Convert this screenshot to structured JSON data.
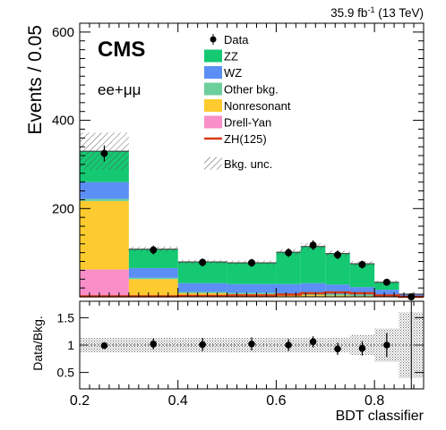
{
  "chart_data": {
    "type": "bar",
    "lumi_label": "35.9 fb",
    "lumi_exp": "-1",
    "lumi_energy": " (13 TeV)",
    "cms_label": "CMS",
    "channel_label": "ee+μμ",
    "ylabel": "Events / 0.05",
    "ratio_ylabel": "Data/Bkg.",
    "xlabel": "BDT classifier",
    "xlim": [
      0.2,
      0.9
    ],
    "ylim": [
      0,
      620
    ],
    "ratio_ylim": [
      0.2,
      1.8
    ],
    "x_ticks": [
      "0.2",
      "0.4",
      "0.6",
      "0.8"
    ],
    "x_tick_values": [
      0.2,
      0.4,
      0.6,
      0.8
    ],
    "y_ticks": [
      "200",
      "400",
      "600"
    ],
    "y_tick_values": [
      200,
      400,
      600
    ],
    "ratio_ticks": [
      "0.5",
      "1",
      "1.5"
    ],
    "ratio_tick_values": [
      0.5,
      1.0,
      1.5
    ],
    "bin_edges": [
      0.2,
      0.3,
      0.4,
      0.5,
      0.6,
      0.65,
      0.7,
      0.75,
      0.8,
      0.85,
      0.9
    ],
    "stack_order": [
      "Drell-Yan",
      "Nonresonant",
      "Other bkg.",
      "WZ",
      "ZZ"
    ],
    "series": [
      {
        "name": "Drell-Yan",
        "color": "#f98ec8",
        "values": [
          62,
          2,
          0,
          0,
          0,
          0,
          0,
          0,
          0,
          0
        ]
      },
      {
        "name": "Nonresonant",
        "color": "#fdcb2f",
        "values": [
          155,
          38,
          8,
          6,
          4,
          4,
          3,
          2,
          2,
          0
        ]
      },
      {
        "name": "Other bkg.",
        "color": "#6dcf9c",
        "values": [
          5,
          3,
          3,
          3,
          3,
          3,
          3,
          3,
          2,
          1
        ]
      },
      {
        "name": "WZ",
        "color": "#5b8ff5",
        "values": [
          38,
          22,
          20,
          20,
          22,
          24,
          22,
          17,
          12,
          5
        ]
      },
      {
        "name": "ZZ",
        "color": "#14c972",
        "values": [
          70,
          43,
          48,
          48,
          72,
          83,
          70,
          53,
          17,
          0
        ]
      }
    ],
    "signal": {
      "name": "ZH(125)",
      "color": "#d63a14",
      "values": [
        1,
        1,
        2,
        3,
        5,
        8,
        10,
        8,
        3,
        0
      ]
    },
    "unc_band": {
      "name": "Bkg. unc.",
      "halfwidth": [
        42,
        6,
        5,
        5,
        7,
        8,
        7,
        6,
        4,
        2
      ]
    },
    "data": {
      "name": "Data",
      "x": [
        0.25,
        0.35,
        0.45,
        0.55,
        0.625,
        0.675,
        0.725,
        0.775,
        0.825,
        0.875
      ],
      "y": [
        325,
        106,
        78,
        77,
        100,
        117,
        95,
        73,
        33,
        0
      ],
      "err": [
        18,
        10,
        9,
        9,
        10,
        11,
        10,
        9,
        6,
        1
      ]
    },
    "ratio": {
      "x": [
        0.25,
        0.35,
        0.45,
        0.55,
        0.625,
        0.675,
        0.725,
        0.775,
        0.825
      ],
      "y": [
        0.99,
        1.02,
        1.01,
        1.02,
        1.0,
        1.06,
        0.93,
        0.94,
        1.0
      ],
      "err": [
        0.06,
        0.1,
        0.12,
        0.12,
        0.11,
        0.1,
        0.11,
        0.13,
        0.22
      ],
      "unc_halfwidth": [
        0.13,
        0.13,
        0.13,
        0.13,
        0.13,
        0.13,
        0.14,
        0.18,
        0.3,
        0.6
      ]
    },
    "legend_position": "top-right"
  }
}
